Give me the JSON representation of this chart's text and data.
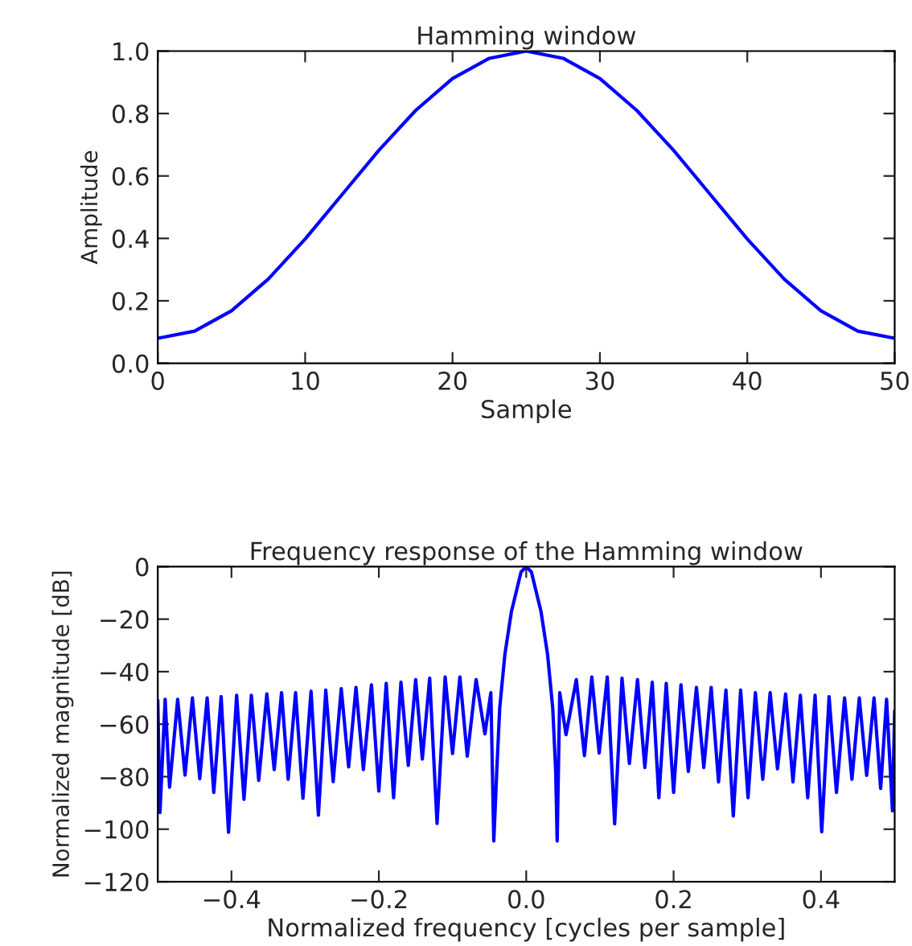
{
  "chart_data": [
    {
      "type": "line",
      "title": "Hamming window",
      "xlabel": "Sample",
      "ylabel": "Amplitude",
      "series": [
        {
          "color": "#0000ff",
          "x": [
            0,
            2.5,
            5,
            7.5,
            10,
            12.5,
            15,
            17.5,
            20,
            22.5,
            25,
            27.5,
            30,
            32.5,
            35,
            37.5,
            40,
            42.5,
            45,
            47.5,
            50
          ],
          "values": [
            0.08,
            0.103,
            0.168,
            0.27,
            0.398,
            0.54,
            0.682,
            0.81,
            0.912,
            0.977,
            1.0,
            0.977,
            0.912,
            0.81,
            0.682,
            0.54,
            0.398,
            0.27,
            0.168,
            0.103,
            0.08
          ]
        }
      ],
      "xlim": [
        0,
        50
      ],
      "xticks": [
        0,
        10,
        20,
        30,
        40,
        50
      ],
      "ylim": [
        0,
        1
      ],
      "yticks": [
        {
          "value": 0,
          "label": "0.0"
        },
        {
          "value": 0.2,
          "label": "0.2"
        },
        {
          "value": 0.4,
          "label": "0.4"
        },
        {
          "value": 0.6,
          "label": "0.6"
        },
        {
          "value": 0.8,
          "label": "0.8"
        },
        {
          "value": 1,
          "label": "1.0"
        }
      ],
      "grid": false
    },
    {
      "type": "line",
      "title": "Frequency response of the Hamming window",
      "xlabel": "Normalized frequency [cycles per sample]",
      "ylabel": "Normalized magnitude [dB]",
      "series": [
        {
          "color": "#0000ff",
          "x": [
            -0.5,
            -0.497,
            -0.49,
            -0.484,
            -0.473,
            -0.463,
            -0.453,
            -0.443,
            -0.433,
            -0.424,
            -0.414,
            -0.404,
            -0.393,
            -0.383,
            -0.373,
            -0.363,
            -0.352,
            -0.342,
            -0.332,
            -0.323,
            -0.313,
            -0.303,
            -0.292,
            -0.282,
            -0.272,
            -0.262,
            -0.251,
            -0.241,
            -0.231,
            -0.221,
            -0.21,
            -0.2,
            -0.19,
            -0.18,
            -0.17,
            -0.16,
            -0.15,
            -0.141,
            -0.131,
            -0.121,
            -0.11,
            -0.1,
            -0.09,
            -0.08,
            -0.068,
            -0.056,
            -0.048,
            -0.044,
            -0.04,
            -0.036,
            -0.029,
            -0.02,
            -0.007,
            0,
            0.007,
            0.02,
            0.029,
            0.036,
            0.04,
            0.042,
            0.0455,
            0.054,
            0.068,
            0.079,
            0.089,
            0.099,
            0.11,
            0.12,
            0.13,
            0.14,
            0.151,
            0.161,
            0.171,
            0.18,
            0.19,
            0.2,
            0.21,
            0.22,
            0.231,
            0.241,
            0.251,
            0.261,
            0.271,
            0.281,
            0.291,
            0.301,
            0.311,
            0.321,
            0.331,
            0.341,
            0.352,
            0.362,
            0.372,
            0.382,
            0.392,
            0.401,
            0.411,
            0.421,
            0.432,
            0.442,
            0.452,
            0.462,
            0.472,
            0.481,
            0.489,
            0.497,
            0.5
          ],
          "values": [
            -51,
            -93.7,
            -50.5,
            -84,
            -50.5,
            -79.4,
            -50,
            -80.8,
            -50,
            -86,
            -49.5,
            -101.2,
            -49,
            -88.6,
            -49,
            -81.4,
            -48.5,
            -77.3,
            -48,
            -81,
            -48,
            -88.2,
            -47.5,
            -94.7,
            -47,
            -81.9,
            -46.5,
            -76.3,
            -46,
            -77.3,
            -45,
            -85.5,
            -44.5,
            -88,
            -44,
            -75.7,
            -43,
            -73.3,
            -42.5,
            -97.8,
            -42,
            -71.2,
            -42,
            -72.2,
            -43,
            -63.7,
            -48,
            -104.5,
            -78,
            -54,
            -33.5,
            -17,
            -2,
            0,
            -2,
            -17,
            -33.5,
            -54,
            -78,
            -104.5,
            -48,
            -64,
            -43,
            -72,
            -42,
            -71,
            -42,
            -98,
            -42.5,
            -75,
            -43,
            -76.5,
            -44,
            -88,
            -44.5,
            -86,
            -45,
            -78,
            -46,
            -76.5,
            -46,
            -82,
            -47,
            -95,
            -47,
            -88,
            -48,
            -81,
            -48,
            -77,
            -48.5,
            -82,
            -49,
            -88,
            -49,
            -101,
            -49.5,
            -86,
            -50,
            -81,
            -50,
            -79.5,
            -50,
            -84.5,
            -50.5,
            -93,
            -55
          ]
        }
      ],
      "xlim": [
        -0.5,
        0.5
      ],
      "xticks": [
        {
          "value": -0.4,
          "label": "−0.4"
        },
        {
          "value": -0.2,
          "label": "−0.2"
        },
        {
          "value": 0,
          "label": "0.0"
        },
        {
          "value": 0.2,
          "label": "0.2"
        },
        {
          "value": 0.4,
          "label": "0.4"
        }
      ],
      "ylim": [
        -120,
        0
      ],
      "yticks": [
        {
          "value": -120,
          "label": "−120"
        },
        {
          "value": -100,
          "label": "−100"
        },
        {
          "value": -80,
          "label": "−80"
        },
        {
          "value": -60,
          "label": "−60"
        },
        {
          "value": -40,
          "label": "−40"
        },
        {
          "value": -20,
          "label": "−20"
        },
        {
          "value": 0,
          "label": "0"
        }
      ],
      "grid": false
    }
  ]
}
